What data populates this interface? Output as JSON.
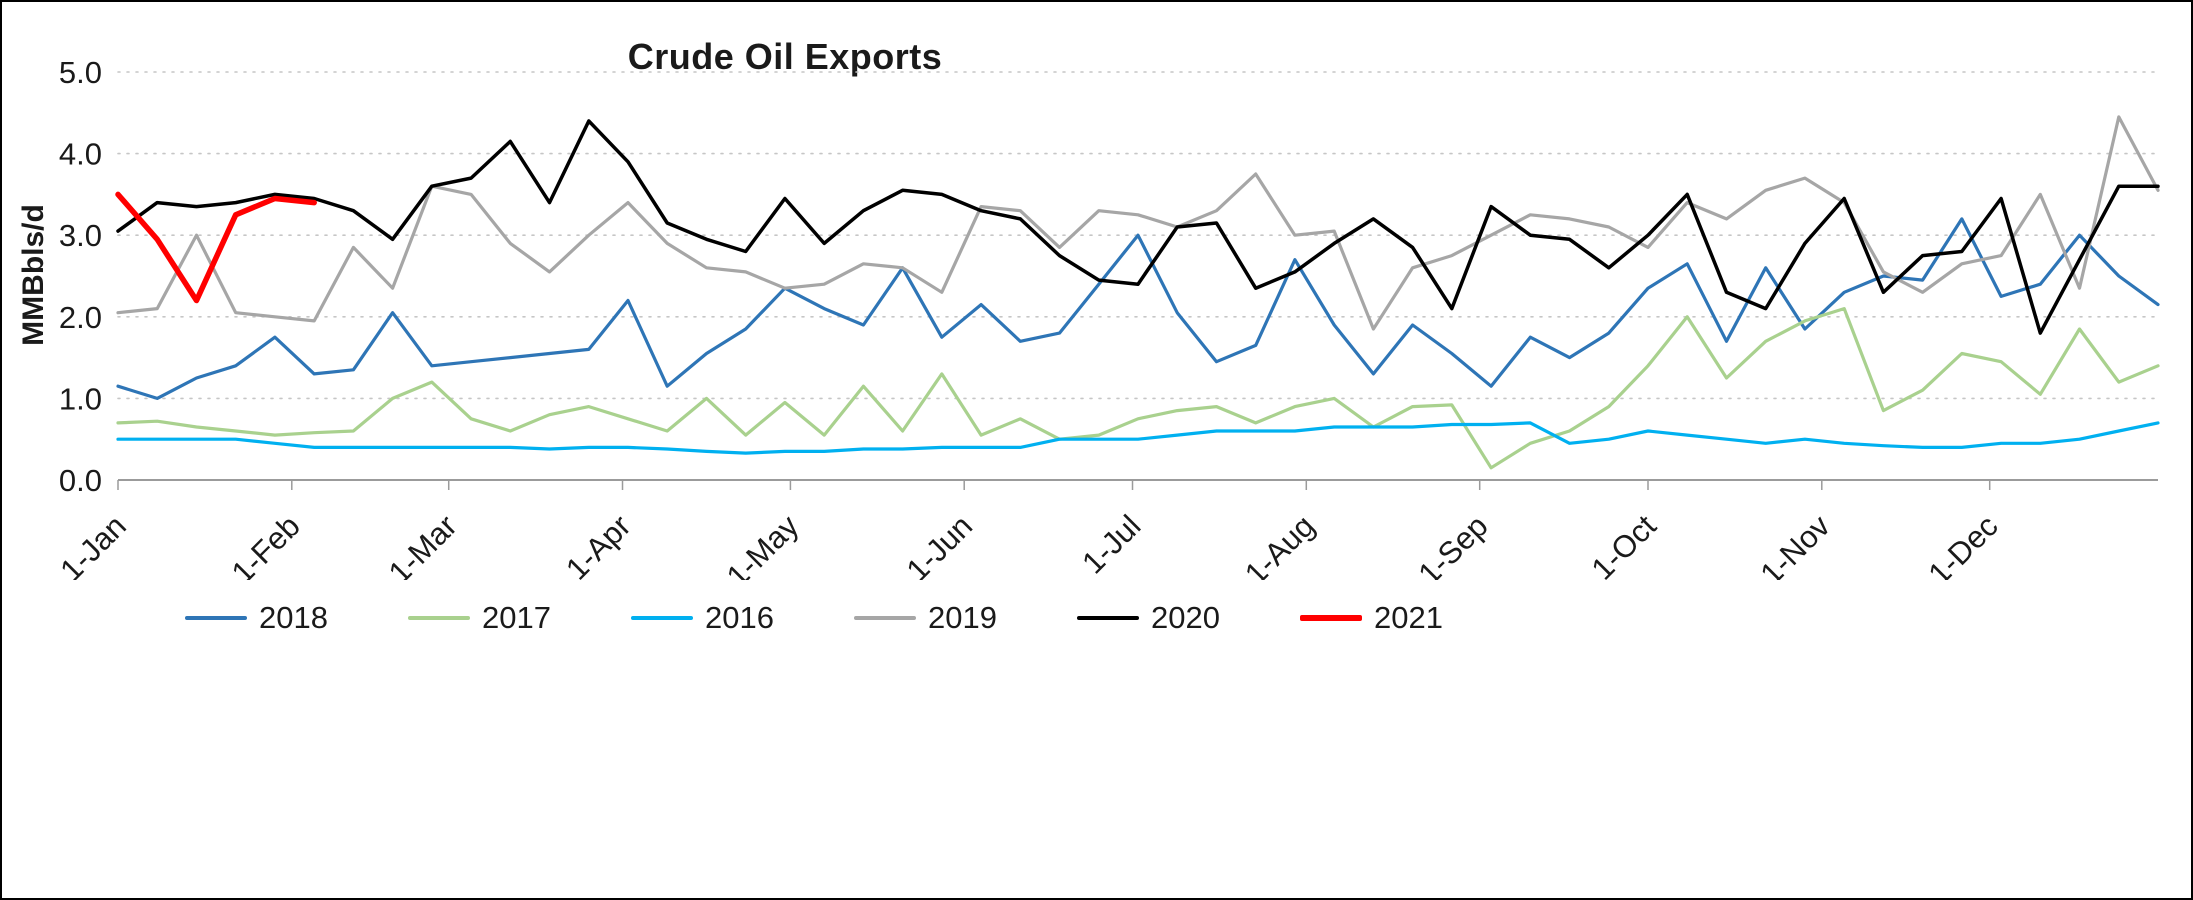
{
  "title": "Crude Oil Exports",
  "chart_data": {
    "type": "line",
    "title": "Crude Oil Exports",
    "xlabel": "",
    "ylabel": "MMBbls/d",
    "ylim": [
      0.0,
      5.0
    ],
    "ytick_step": 1.0,
    "y_tick_labels": [
      "0.0",
      "1.0",
      "2.0",
      "3.0",
      "4.0",
      "5.0"
    ],
    "grid": "horizontal-dotted",
    "legend_position": "bottom",
    "x_unit": "weekly observations, one calendar year",
    "x_tick_labels": [
      "1-Jan",
      "1-Feb",
      "1-Mar",
      "1-Apr",
      "1-May",
      "1-Jun",
      "1-Jul",
      "1-Aug",
      "1-Sep",
      "1-Oct",
      "1-Nov",
      "1-Dec"
    ],
    "x_tick_positions_weeks": [
      0,
      4.43,
      8.43,
      12.86,
      17.14,
      21.57,
      25.86,
      30.29,
      34.71,
      39.0,
      43.43,
      47.71
    ],
    "x_range_weeks": [
      0,
      52
    ],
    "legend_order": [
      "2018",
      "2017",
      "2016",
      "2019",
      "2020",
      "2021"
    ],
    "series": [
      {
        "name": "2018",
        "color": "#2E75B6",
        "width": 3.2,
        "values": [
          1.15,
          1.0,
          1.25,
          1.4,
          1.75,
          1.3,
          1.35,
          2.05,
          1.4,
          1.45,
          1.5,
          1.55,
          1.6,
          2.2,
          1.15,
          1.55,
          1.85,
          2.35,
          2.1,
          1.9,
          2.6,
          1.75,
          2.15,
          1.7,
          1.8,
          2.4,
          3.0,
          2.05,
          1.45,
          1.65,
          2.7,
          1.9,
          1.3,
          1.9,
          1.55,
          1.15,
          1.75,
          1.5,
          1.8,
          2.35,
          2.65,
          1.7,
          2.6,
          1.85,
          2.3,
          2.5,
          2.45,
          3.2,
          2.25,
          2.4,
          3.0,
          2.5,
          2.15
        ]
      },
      {
        "name": "2017",
        "color": "#A9D18E",
        "width": 3.2,
        "values": [
          0.7,
          0.72,
          0.65,
          0.6,
          0.55,
          0.58,
          0.6,
          1.0,
          1.2,
          0.75,
          0.6,
          0.8,
          0.9,
          0.75,
          0.6,
          1.0,
          0.55,
          0.95,
          0.55,
          1.15,
          0.6,
          1.3,
          0.55,
          0.75,
          0.5,
          0.55,
          0.75,
          0.85,
          0.9,
          0.7,
          0.9,
          1.0,
          0.65,
          0.9,
          0.92,
          0.15,
          0.45,
          0.6,
          0.9,
          1.4,
          2.0,
          1.25,
          1.7,
          1.95,
          2.1,
          0.85,
          1.1,
          1.55,
          1.45,
          1.05,
          1.85,
          1.2,
          1.4
        ]
      },
      {
        "name": "2016",
        "color": "#00B0F0",
        "width": 3.2,
        "values": [
          0.5,
          0.5,
          0.5,
          0.5,
          0.45,
          0.4,
          0.4,
          0.4,
          0.4,
          0.4,
          0.4,
          0.38,
          0.4,
          0.4,
          0.38,
          0.35,
          0.33,
          0.35,
          0.35,
          0.38,
          0.38,
          0.4,
          0.4,
          0.4,
          0.5,
          0.5,
          0.5,
          0.55,
          0.6,
          0.6,
          0.6,
          0.65,
          0.65,
          0.65,
          0.68,
          0.68,
          0.7,
          0.45,
          0.5,
          0.6,
          0.55,
          0.5,
          0.45,
          0.5,
          0.45,
          0.42,
          0.4,
          0.4,
          0.45,
          0.45,
          0.5,
          0.6,
          0.7
        ]
      },
      {
        "name": "2019",
        "color": "#A6A6A6",
        "width": 3.2,
        "values": [
          2.05,
          2.1,
          3.0,
          2.05,
          2.0,
          1.95,
          2.85,
          2.35,
          3.6,
          3.5,
          2.9,
          2.55,
          3.0,
          3.4,
          2.9,
          2.6,
          2.55,
          2.35,
          2.4,
          2.65,
          2.6,
          2.3,
          3.35,
          3.3,
          2.85,
          3.3,
          3.25,
          3.1,
          3.3,
          3.75,
          3.0,
          3.05,
          1.85,
          2.6,
          2.75,
          3.0,
          3.25,
          3.2,
          3.1,
          2.85,
          3.4,
          3.2,
          3.55,
          3.7,
          3.4,
          2.55,
          2.3,
          2.65,
          2.75,
          3.5,
          2.35,
          4.45,
          3.55
        ]
      },
      {
        "name": "2020",
        "color": "#000000",
        "width": 3.5,
        "values": [
          3.05,
          3.4,
          3.35,
          3.4,
          3.5,
          3.45,
          3.3,
          2.95,
          3.6,
          3.7,
          4.15,
          3.4,
          4.4,
          3.9,
          3.15,
          2.95,
          2.8,
          3.45,
          2.9,
          3.3,
          3.55,
          3.5,
          3.3,
          3.2,
          2.75,
          2.45,
          2.4,
          3.1,
          3.15,
          2.35,
          2.55,
          2.9,
          3.2,
          2.85,
          2.1,
          3.35,
          3.0,
          2.95,
          2.6,
          3.0,
          3.5,
          2.3,
          2.1,
          2.9,
          3.45,
          2.3,
          2.75,
          2.8,
          3.45,
          1.8,
          2.7,
          3.6,
          3.6
        ]
      },
      {
        "name": "2021",
        "color": "#FF0000",
        "width": 5.5,
        "values": [
          3.5,
          2.95,
          2.2,
          3.25,
          3.45,
          3.4
        ]
      }
    ]
  }
}
